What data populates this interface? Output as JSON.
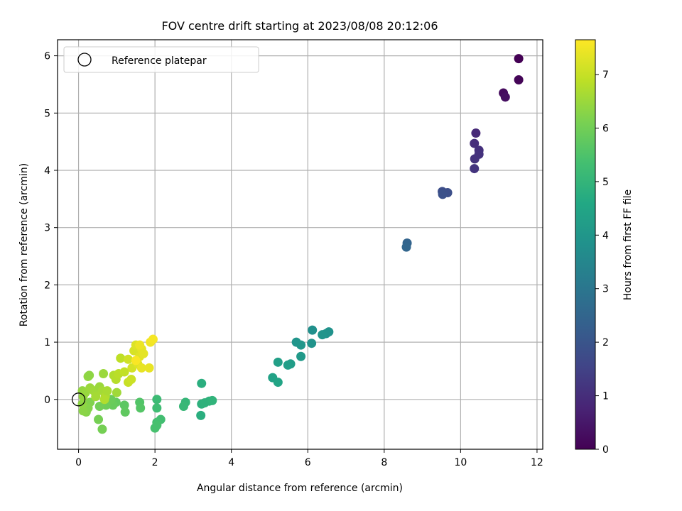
{
  "chart_data": {
    "type": "scatter",
    "title": "FOV centre drift starting at 2023/08/08 20:12:06",
    "xlabel": "Angular distance from reference (arcmin)",
    "ylabel": "Rotation from reference (arcmin)",
    "xlim": [
      -0.55,
      12.15
    ],
    "ylim": [
      -0.87,
      6.28
    ],
    "xticks": [
      0,
      2,
      4,
      6,
      8,
      10,
      12
    ],
    "yticks": [
      0,
      1,
      2,
      3,
      4,
      5,
      6
    ],
    "grid": true,
    "legend": {
      "position": "top-left",
      "entries": [
        {
          "label": "Reference platepar",
          "marker": "open-circle"
        }
      ]
    },
    "reference_point": {
      "x": 0,
      "y": 0
    },
    "colorbar": {
      "label": "Hours from first FF file",
      "colormap": "viridis",
      "range": [
        0,
        7.65
      ],
      "ticks": [
        0,
        1,
        2,
        3,
        4,
        5,
        6,
        7
      ]
    },
    "points": [
      {
        "x": 11.52,
        "y": 5.95,
        "t": 0.0
      },
      {
        "x": 11.52,
        "y": 5.58,
        "t": 0.08
      },
      {
        "x": 11.12,
        "y": 5.35,
        "t": 0.2
      },
      {
        "x": 11.17,
        "y": 5.28,
        "t": 0.3
      },
      {
        "x": 10.4,
        "y": 4.65,
        "t": 0.9
      },
      {
        "x": 10.36,
        "y": 4.47,
        "t": 1.0
      },
      {
        "x": 10.48,
        "y": 4.35,
        "t": 1.05
      },
      {
        "x": 10.48,
        "y": 4.28,
        "t": 1.1
      },
      {
        "x": 10.37,
        "y": 4.2,
        "t": 1.12
      },
      {
        "x": 10.36,
        "y": 4.03,
        "t": 1.15
      },
      {
        "x": 9.52,
        "y": 3.63,
        "t": 1.8
      },
      {
        "x": 9.66,
        "y": 3.61,
        "t": 1.85
      },
      {
        "x": 9.53,
        "y": 3.58,
        "t": 1.9
      },
      {
        "x": 8.6,
        "y": 2.73,
        "t": 2.45
      },
      {
        "x": 8.58,
        "y": 2.66,
        "t": 2.5
      },
      {
        "x": 6.12,
        "y": 1.21,
        "t": 3.8
      },
      {
        "x": 6.55,
        "y": 1.18,
        "t": 3.85
      },
      {
        "x": 6.48,
        "y": 1.15,
        "t": 3.9
      },
      {
        "x": 6.38,
        "y": 1.13,
        "t": 3.95
      },
      {
        "x": 5.7,
        "y": 1.0,
        "t": 3.95
      },
      {
        "x": 6.1,
        "y": 0.98,
        "t": 3.9
      },
      {
        "x": 5.82,
        "y": 0.95,
        "t": 4.0
      },
      {
        "x": 5.82,
        "y": 0.75,
        "t": 4.1
      },
      {
        "x": 5.55,
        "y": 0.62,
        "t": 4.2
      },
      {
        "x": 5.48,
        "y": 0.6,
        "t": 4.25
      },
      {
        "x": 5.22,
        "y": 0.65,
        "t": 4.3
      },
      {
        "x": 5.08,
        "y": 0.38,
        "t": 4.4
      },
      {
        "x": 5.22,
        "y": 0.3,
        "t": 4.45
      },
      {
        "x": 3.22,
        "y": 0.28,
        "t": 4.8
      },
      {
        "x": 3.22,
        "y": -0.08,
        "t": 4.85
      },
      {
        "x": 3.3,
        "y": -0.06,
        "t": 4.9
      },
      {
        "x": 3.42,
        "y": -0.03,
        "t": 4.9
      },
      {
        "x": 3.5,
        "y": -0.02,
        "t": 4.95
      },
      {
        "x": 3.2,
        "y": -0.28,
        "t": 4.8
      },
      {
        "x": 2.8,
        "y": -0.05,
        "t": 5.05
      },
      {
        "x": 2.75,
        "y": -0.12,
        "t": 5.1
      },
      {
        "x": 2.05,
        "y": 0.0,
        "t": 5.2
      },
      {
        "x": 2.05,
        "y": -0.15,
        "t": 5.25
      },
      {
        "x": 2.15,
        "y": -0.35,
        "t": 5.3
      },
      {
        "x": 2.05,
        "y": -0.4,
        "t": 5.35
      },
      {
        "x": 2.0,
        "y": -0.5,
        "t": 5.4
      },
      {
        "x": 2.05,
        "y": -0.45,
        "t": 5.4
      },
      {
        "x": 1.6,
        "y": -0.05,
        "t": 5.55
      },
      {
        "x": 1.62,
        "y": -0.15,
        "t": 5.6
      },
      {
        "x": 1.2,
        "y": -0.1,
        "t": 5.7
      },
      {
        "x": 1.22,
        "y": -0.22,
        "t": 5.75
      },
      {
        "x": 0.98,
        "y": -0.05,
        "t": 5.8
      },
      {
        "x": 0.9,
        "y": -0.1,
        "t": 5.85
      },
      {
        "x": 0.85,
        "y": 0.0,
        "t": 5.9
      },
      {
        "x": 0.72,
        "y": -0.1,
        "t": 5.95
      },
      {
        "x": 0.55,
        "y": -0.12,
        "t": 6.0
      },
      {
        "x": 0.52,
        "y": -0.35,
        "t": 6.05
      },
      {
        "x": 0.62,
        "y": -0.52,
        "t": 6.05
      },
      {
        "x": 0.3,
        "y": -0.05,
        "t": 6.2
      },
      {
        "x": 0.25,
        "y": -0.15,
        "t": 6.25
      },
      {
        "x": 0.2,
        "y": -0.22,
        "t": 6.25
      },
      {
        "x": 0.12,
        "y": -0.2,
        "t": 6.3
      },
      {
        "x": 0.1,
        "y": -0.08,
        "t": 6.35
      },
      {
        "x": 0.12,
        "y": 0.05,
        "t": 6.4
      },
      {
        "x": 0.1,
        "y": 0.15,
        "t": 6.4
      },
      {
        "x": 0.18,
        "y": 0.12,
        "t": 6.45
      },
      {
        "x": 0.3,
        "y": 0.2,
        "t": 6.5
      },
      {
        "x": 0.25,
        "y": 0.4,
        "t": 6.4
      },
      {
        "x": 0.28,
        "y": 0.42,
        "t": 6.35
      },
      {
        "x": 0.4,
        "y": 0.15,
        "t": 6.55
      },
      {
        "x": 0.45,
        "y": 0.05,
        "t": 6.6
      },
      {
        "x": 0.55,
        "y": 0.22,
        "t": 6.5
      },
      {
        "x": 0.62,
        "y": 0.15,
        "t": 6.6
      },
      {
        "x": 0.65,
        "y": 0.45,
        "t": 6.5
      },
      {
        "x": 0.7,
        "y": 0.05,
        "t": 6.7
      },
      {
        "x": 0.68,
        "y": 0.0,
        "t": 6.75
      },
      {
        "x": 0.75,
        "y": 0.15,
        "t": 6.65
      },
      {
        "x": 0.92,
        "y": 0.42,
        "t": 6.75
      },
      {
        "x": 0.98,
        "y": 0.35,
        "t": 6.8
      },
      {
        "x": 1.0,
        "y": 0.12,
        "t": 6.55
      },
      {
        "x": 1.05,
        "y": 0.45,
        "t": 6.85
      },
      {
        "x": 1.1,
        "y": 0.72,
        "t": 6.9
      },
      {
        "x": 1.2,
        "y": 0.48,
        "t": 6.95
      },
      {
        "x": 1.3,
        "y": 0.3,
        "t": 7.0
      },
      {
        "x": 1.38,
        "y": 0.35,
        "t": 7.05
      },
      {
        "x": 1.3,
        "y": 0.7,
        "t": 7.1
      },
      {
        "x": 1.4,
        "y": 0.55,
        "t": 7.15
      },
      {
        "x": 1.45,
        "y": 0.85,
        "t": 7.2
      },
      {
        "x": 1.5,
        "y": 0.95,
        "t": 7.25
      },
      {
        "x": 1.55,
        "y": 0.62,
        "t": 7.25
      },
      {
        "x": 1.6,
        "y": 0.75,
        "t": 7.3
      },
      {
        "x": 1.65,
        "y": 0.88,
        "t": 7.35
      },
      {
        "x": 1.7,
        "y": 0.8,
        "t": 7.35
      },
      {
        "x": 1.65,
        "y": 0.55,
        "t": 7.4
      },
      {
        "x": 1.85,
        "y": 0.55,
        "t": 7.4
      },
      {
        "x": 1.6,
        "y": 0.95,
        "t": 7.45
      },
      {
        "x": 1.88,
        "y": 1.0,
        "t": 7.5
      },
      {
        "x": 1.95,
        "y": 1.05,
        "t": 7.55
      },
      {
        "x": 1.5,
        "y": 0.68,
        "t": 7.6
      }
    ]
  }
}
